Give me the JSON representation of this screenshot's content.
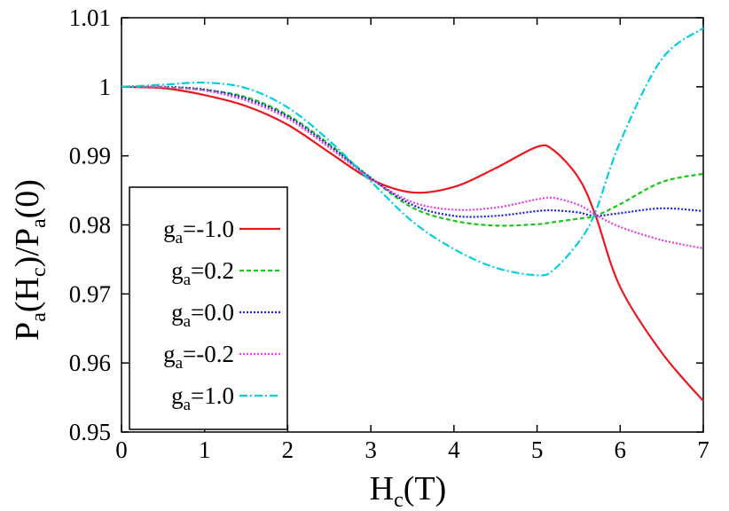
{
  "chart_data": {
    "type": "line",
    "title": "",
    "xlabel": {
      "main": "H",
      "sub": "c",
      "tail": "(T)"
    },
    "ylabel": {
      "p1": "P",
      "s1": "a",
      "p2": "(H",
      "s2": "c",
      "p3": ")/P",
      "s3": "a",
      "p4": "(0)"
    },
    "xlim": [
      0,
      7
    ],
    "ylim": [
      0.95,
      1.01
    ],
    "xticks": [
      0,
      1,
      2,
      3,
      4,
      5,
      6,
      7
    ],
    "xtick_labels": [
      "0",
      "1",
      "2",
      "3",
      "4",
      "5",
      "6",
      "7"
    ],
    "yticks": [
      0.95,
      0.96,
      0.97,
      0.98,
      0.99,
      1.0,
      1.01
    ],
    "ytick_labels": [
      "0.95",
      "0.96",
      "0.97",
      "0.98",
      "0.99",
      "1",
      "1.01"
    ],
    "grid": false,
    "legend_position": "left",
    "x": [
      0,
      0.5,
      1.0,
      1.5,
      2.0,
      2.5,
      3.0,
      3.5,
      4.0,
      4.5,
      5.0,
      5.2,
      5.5,
      5.7,
      6.0,
      6.5,
      7.0
    ],
    "series": [
      {
        "name": "g_a=-1.0",
        "label_main": "g",
        "label_sub": "a",
        "label_tail": "=-1.0",
        "color": "#e8191e",
        "dash": "solid",
        "values": [
          1.0,
          0.9998,
          0.9988,
          0.9972,
          0.9945,
          0.9905,
          0.9866,
          0.9847,
          0.9855,
          0.9882,
          0.9913,
          0.9908,
          0.9868,
          0.9815,
          0.971,
          0.9615,
          0.9545
        ]
      },
      {
        "name": "g_a=0.2",
        "label_main": "g",
        "label_sub": "a",
        "label_tail": "=0.2",
        "color": "#19c819",
        "dash": "dashed",
        "values": [
          1.0,
          0.99995,
          0.99955,
          0.9985,
          0.9959,
          0.9917,
          0.9868,
          0.9825,
          0.9806,
          0.9799,
          0.9801,
          0.9804,
          0.9809,
          0.9813,
          0.983,
          0.9862,
          0.9874
        ]
      },
      {
        "name": "g_a=0.0",
        "label_main": "g",
        "label_sub": "a",
        "label_tail": "=0.0",
        "color": "#1e1ecc",
        "dash": "dotted",
        "values": [
          1.0,
          1.0,
          0.9996,
          0.9983,
          0.9957,
          0.9915,
          0.9868,
          0.9829,
          0.9813,
          0.9813,
          0.982,
          0.9821,
          0.9818,
          0.9813,
          0.9817,
          0.9824,
          0.982
        ]
      },
      {
        "name": "g_a=-0.2",
        "label_main": "g",
        "label_sub": "a",
        "label_tail": "=-0.2",
        "color": "#e83ce8",
        "dash": "dotted",
        "values": [
          1.0,
          0.99995,
          0.99945,
          0.998,
          0.9954,
          0.9912,
          0.9867,
          0.9833,
          0.9822,
          0.9825,
          0.9837,
          0.9839,
          0.9829,
          0.9815,
          0.9797,
          0.9778,
          0.9766
        ]
      },
      {
        "name": "g_a=1.0",
        "label_main": "g",
        "label_sub": "a",
        "label_tail": "=1.0",
        "color": "#00d0e0",
        "dash": "dashdot",
        "values": [
          1.0,
          1.0003,
          1.0006,
          0.9998,
          0.997,
          0.9922,
          0.9863,
          0.9805,
          0.9765,
          0.9738,
          0.9727,
          0.9735,
          0.9775,
          0.9818,
          0.992,
          1.004,
          1.0085
        ]
      }
    ]
  }
}
